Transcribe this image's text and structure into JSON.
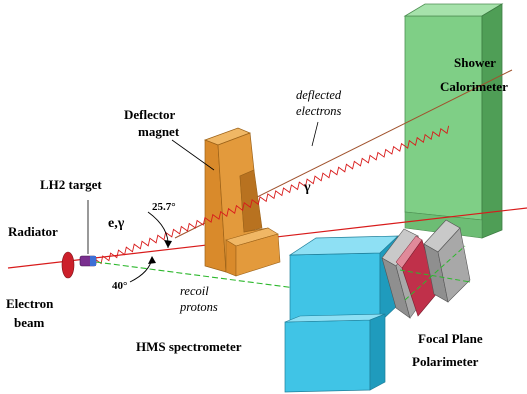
{
  "labels": {
    "shower_line1": "Shower",
    "shower_line2": "Calorimeter",
    "deflected_line1": "deflected",
    "deflected_line2": "electrons",
    "deflector_line1": "Deflector",
    "deflector_line2": "magnet",
    "lh2_target": "LH2 target",
    "e_gamma": "e,γ",
    "angle_upper": "25.7°",
    "radiator": "Radiator",
    "angle_lower": "40°",
    "electron_beam_line1": "Electron",
    "electron_beam_line2": "beam",
    "recoil_line1": "recoil",
    "recoil_line2": "protons",
    "hms": "HMS spectrometer",
    "fpp_line1": "Focal Plane",
    "fpp_line2": "Polarimeter",
    "gamma": "γ"
  },
  "colors": {
    "calorimeter": "#7fcf86",
    "magnet": "#e39a3c",
    "hms": "#40c4e6",
    "polarimeter": "#a8a8a8",
    "polarimeter_red": "#c0304a",
    "beam_line": "#d81b1b",
    "proton_track": "#2db82d",
    "electron_track": "#a0522d",
    "radiator": "#cc1f2a",
    "target": "#7a2f8f"
  }
}
